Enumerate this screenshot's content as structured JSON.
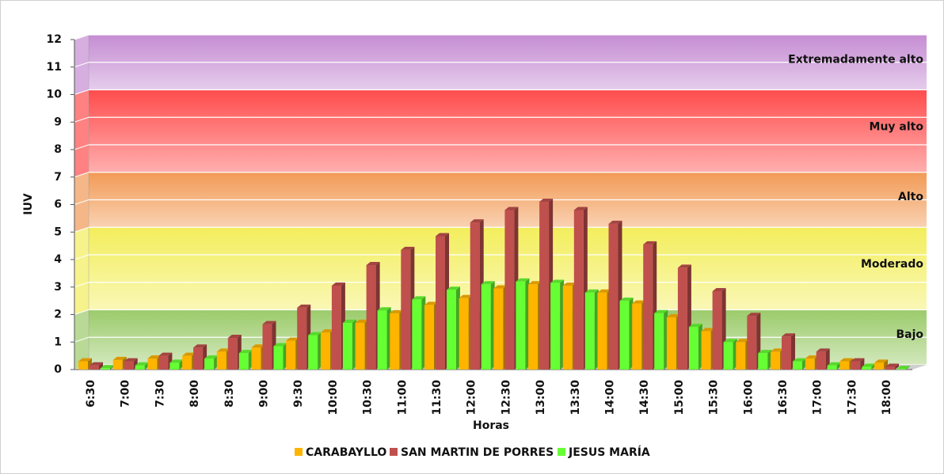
{
  "chart_data": {
    "type": "bar3d",
    "x_label": "Horas",
    "y_label": "IUV",
    "categories": [
      "6:30",
      "7:00",
      "7:30",
      "8:00",
      "8:30",
      "9:00",
      "9:30",
      "10:00",
      "10:30",
      "11:00",
      "11:30",
      "12:00",
      "12:30",
      "13:00",
      "13:30",
      "14:00",
      "14:30",
      "15:00",
      "15:30",
      "16:00",
      "16:30",
      "17:00",
      "17:30",
      "18:00"
    ],
    "series": [
      {
        "name": "CARABAYLLO",
        "color": "#FFB400",
        "values": [
          0.3,
          0.35,
          0.4,
          0.5,
          0.65,
          0.8,
          1.05,
          1.35,
          1.7,
          2.05,
          2.35,
          2.6,
          2.95,
          3.1,
          3.05,
          2.8,
          2.4,
          1.9,
          1.4,
          1.0,
          0.65,
          0.4,
          0.3,
          0.25
        ]
      },
      {
        "name": "SAN MARTIN DE PORRES",
        "color": "#C0504D",
        "values": [
          0.15,
          0.3,
          0.5,
          0.8,
          1.15,
          1.65,
          2.25,
          3.05,
          3.8,
          4.35,
          4.85,
          5.35,
          5.8,
          6.1,
          5.8,
          5.3,
          4.55,
          3.7,
          2.85,
          1.95,
          1.2,
          0.65,
          0.3,
          0.1
        ]
      },
      {
        "name": "JESUS MARÍA",
        "color": "#66FF33",
        "values": [
          0.05,
          0.15,
          0.25,
          0.4,
          0.6,
          0.85,
          1.25,
          1.7,
          2.15,
          2.55,
          2.9,
          3.1,
          3.2,
          3.15,
          2.8,
          2.5,
          2.05,
          1.55,
          1.0,
          0.6,
          0.3,
          0.15,
          0.1,
          0.02
        ]
      }
    ],
    "bands": [
      {
        "name": "Bajo",
        "from": 0,
        "to": 2,
        "color": "#9BCB6A"
      },
      {
        "name": "Moderado",
        "from": 2,
        "to": 5,
        "color": "#F3EE5C"
      },
      {
        "name": "Alto",
        "from": 5,
        "to": 7,
        "color": "#F29A55"
      },
      {
        "name": "Muy alto",
        "from": 7,
        "to": 10,
        "color": "#FF4C4C"
      },
      {
        "name": "Extremadamente alto",
        "from": 10,
        "to": 12,
        "color": "#C58DD3"
      }
    ],
    "ylim": [
      0,
      12
    ],
    "yticks": [
      0,
      1,
      2,
      3,
      4,
      5,
      6,
      7,
      8,
      9,
      10,
      11,
      12
    ],
    "grid": true,
    "legend": "bottom"
  }
}
